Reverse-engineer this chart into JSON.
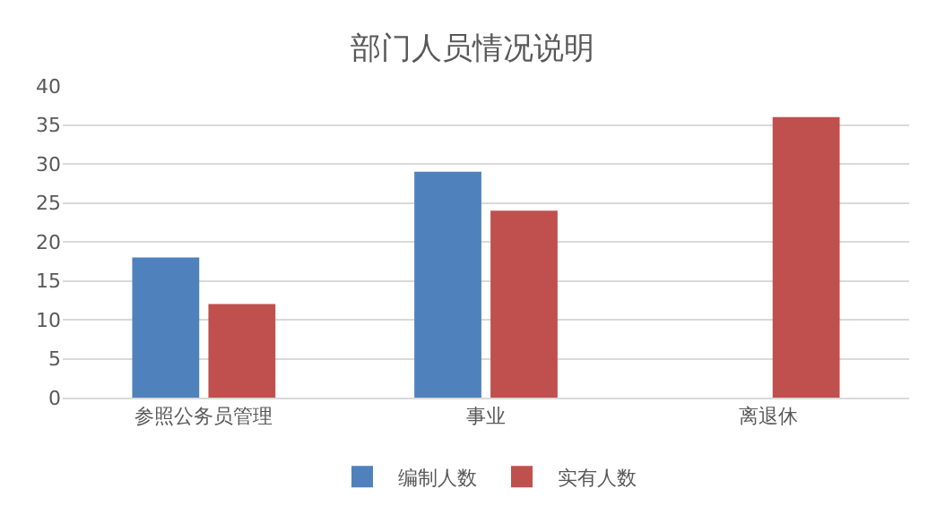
{
  "chart_data": {
    "type": "bar",
    "title": "部门人员情况说明",
    "categories": [
      "参照公务员管理",
      "事业",
      "离退休"
    ],
    "series": [
      {
        "name": "编制人数",
        "color": "#4f81bd",
        "values": [
          18,
          29,
          null
        ]
      },
      {
        "name": "实有人数",
        "color": "#c0504d",
        "values": [
          12,
          24,
          36
        ]
      }
    ],
    "ylim": [
      0,
      40
    ],
    "yticks": [
      0,
      5,
      10,
      15,
      20,
      25,
      30,
      35,
      40
    ],
    "grid": "y",
    "legend": "bottom"
  }
}
